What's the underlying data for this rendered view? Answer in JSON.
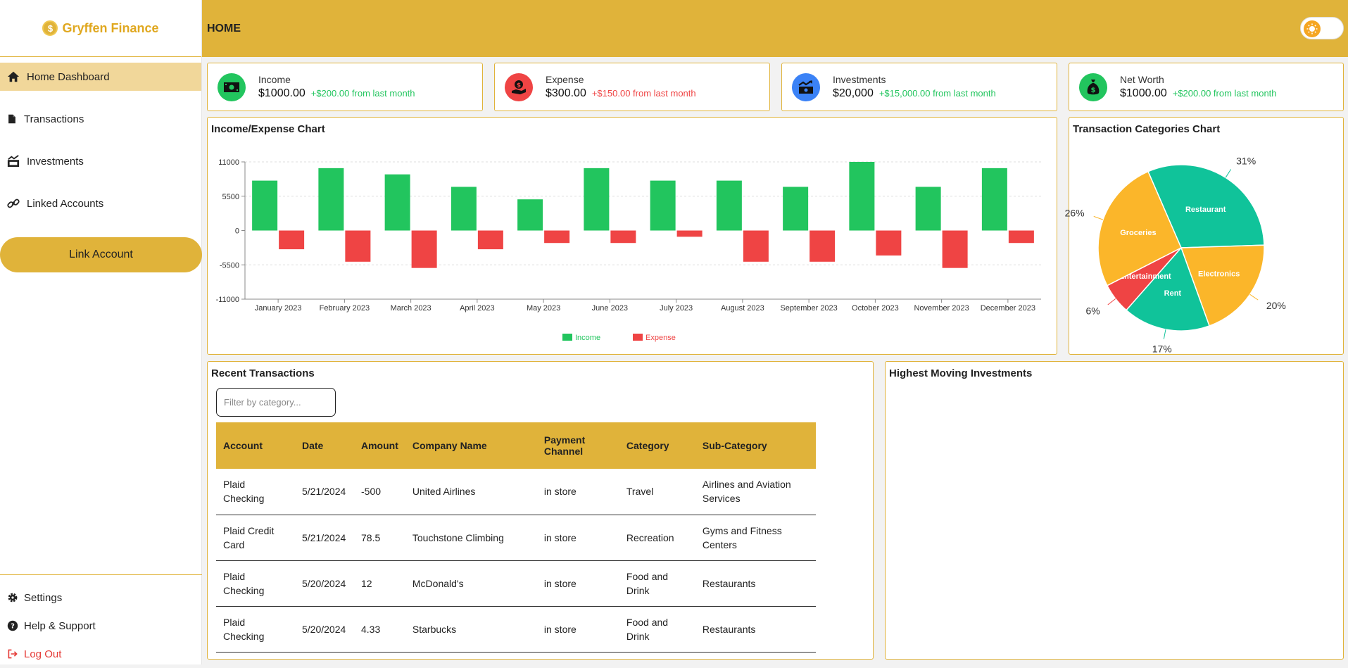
{
  "brand": {
    "name": "Gryffen Finance",
    "coin_symbol": "$"
  },
  "sidebar": {
    "items": [
      {
        "label": "Home Dashboard",
        "icon": "home-icon"
      },
      {
        "label": "Transactions",
        "icon": "file-icon"
      },
      {
        "label": "Investments",
        "icon": "chart-icon"
      },
      {
        "label": "Linked Accounts",
        "icon": "link-icon"
      }
    ],
    "link_button": "Link Account",
    "bottom": [
      {
        "label": "Settings",
        "icon": "gear-icon"
      },
      {
        "label": "Help & Support",
        "icon": "help-icon"
      },
      {
        "label": "Log Out",
        "icon": "logout-icon"
      }
    ]
  },
  "header": {
    "title": "HOME"
  },
  "cards": [
    {
      "label": "Income",
      "value": "$1000.00",
      "change": "+$200.00 from last month",
      "icon": "money-icon",
      "color": "#22c55e"
    },
    {
      "label": "Expense",
      "value": "$300.00",
      "change": "+$150.00 from last month",
      "icon": "hand-money-icon",
      "color": "#ef4444"
    },
    {
      "label": "Investments",
      "value": "$20,000",
      "change": "+$15,000.00 from last month",
      "icon": "trend-icon",
      "color": "#3b82f6"
    },
    {
      "label": "Net Worth",
      "value": "$1000.00",
      "change": "+$200.00 from last month",
      "icon": "moneybag-icon",
      "color": "#22c55e"
    }
  ],
  "income_chart": {
    "title": "Income/Expense Chart"
  },
  "pie_chart": {
    "title": "Transaction Categories Chart"
  },
  "recent": {
    "title": "Recent Transactions",
    "filter_placeholder": "Filter by category...",
    "columns": [
      "Account",
      "Date",
      "Amount",
      "Company Name",
      "Payment Channel",
      "Category",
      "Sub-Category"
    ],
    "rows": [
      [
        "Plaid Checking",
        "5/21/2024",
        "-500",
        "United Airlines",
        "in store",
        "Travel",
        "Airlines and Aviation Services"
      ],
      [
        "Plaid Credit Card",
        "5/21/2024",
        "78.5",
        "Touchstone Climbing",
        "in store",
        "Recreation",
        "Gyms and Fitness Centers"
      ],
      [
        "Plaid Checking",
        "5/20/2024",
        "12",
        "McDonald's",
        "in store",
        "Food and Drink",
        "Restaurants"
      ],
      [
        "Plaid Checking",
        "5/20/2024",
        "4.33",
        "Starbucks",
        "in store",
        "Food and Drink",
        "Restaurants"
      ]
    ]
  },
  "investments_panel": {
    "title": "Highest Moving Investments"
  },
  "chart_data": [
    {
      "type": "bar",
      "title": "Income/Expense Chart",
      "categories": [
        "January 2023",
        "February 2023",
        "March 2023",
        "April 2023",
        "May 2023",
        "June 2023",
        "July 2023",
        "August 2023",
        "September 2023",
        "October 2023",
        "November 2023",
        "December 2023"
      ],
      "series": [
        {
          "name": "Income",
          "color": "#22c55e",
          "values": [
            8000,
            10000,
            9000,
            7000,
            5000,
            10000,
            8000,
            8000,
            7000,
            11000,
            7000,
            10000
          ]
        },
        {
          "name": "Expense",
          "color": "#ef4444",
          "values": [
            -3000,
            -5000,
            -6000,
            -3000,
            -2000,
            -2000,
            -1000,
            -5000,
            -5000,
            -4000,
            -6000,
            -2000
          ]
        }
      ],
      "yticks": [
        11000,
        5500,
        0,
        -5500,
        -11000
      ],
      "ylim": [
        -11000,
        11000
      ],
      "legend": "bottom-center"
    },
    {
      "type": "pie",
      "title": "Transaction Categories Chart",
      "slices": [
        {
          "label": "Restaurant",
          "value": 31,
          "color": "#10c39a",
          "pct_label": "31%"
        },
        {
          "label": "Electronics",
          "value": 20,
          "color": "#fbb62a",
          "pct_label": "20%"
        },
        {
          "label": "Rent",
          "value": 17,
          "color": "#10c39a",
          "pct_label": "17%"
        },
        {
          "label": "Entertainment",
          "value": 6,
          "color": "#ef4444",
          "pct_label": "6%"
        },
        {
          "label": "Groceries",
          "value": 26,
          "color": "#fbb62a",
          "pct_label": "26%"
        }
      ]
    }
  ]
}
